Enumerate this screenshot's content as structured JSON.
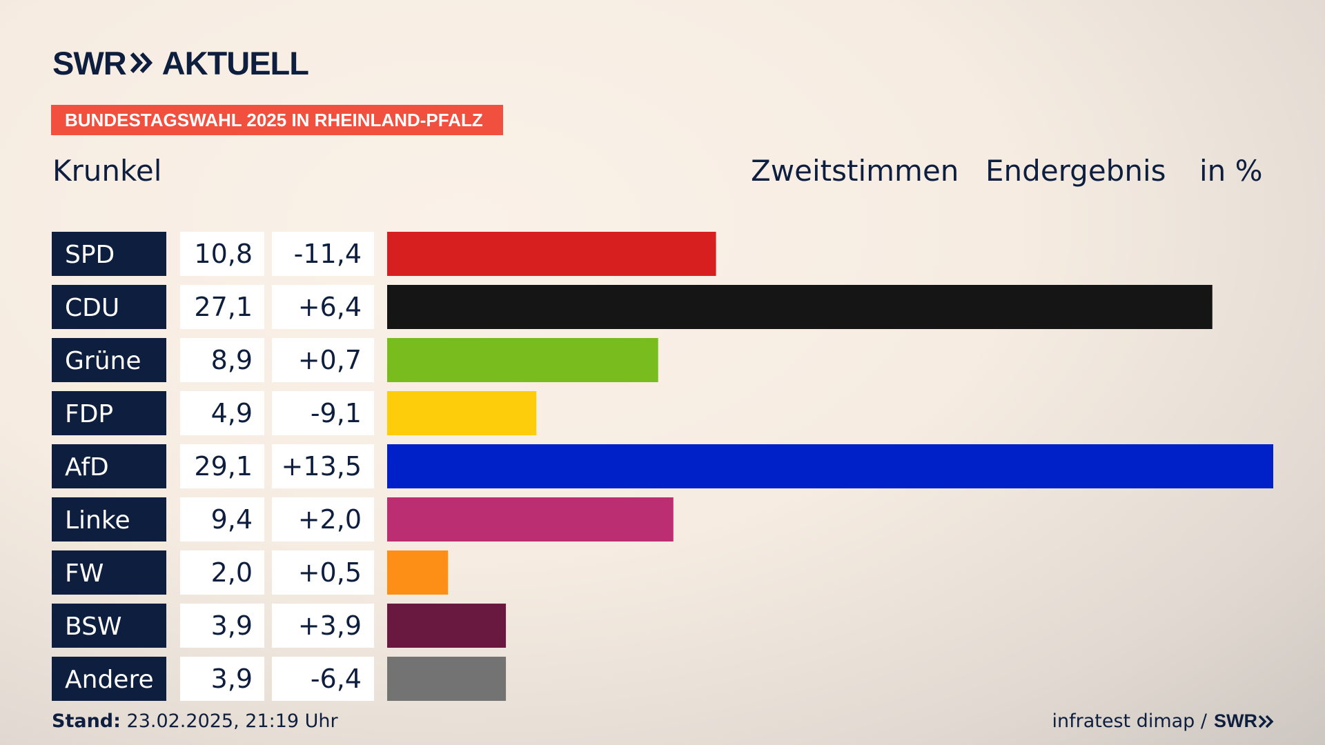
{
  "brand": {
    "swr": "SWR",
    "aktuell": "AKTUELL"
  },
  "banner": "BUNDESTAGSWAHL 2025 IN RHEINLAND-PFALZ",
  "place": "Krunkel",
  "header": {
    "vote_type": "Zweitstimmen",
    "result_type": "Endergebnis",
    "unit": "in %"
  },
  "colors": {
    "navy": "#0e1e3e",
    "banner_red": "#f2503f"
  },
  "chart_data": {
    "type": "bar",
    "orientation": "horizontal",
    "title": "Zweitstimmen Endergebnis",
    "unit": "in %",
    "categories": [
      "SPD",
      "CDU",
      "Grüne",
      "FDP",
      "AfD",
      "Linke",
      "FW",
      "BSW",
      "Andere"
    ],
    "values": [
      10.8,
      27.1,
      8.9,
      4.9,
      29.1,
      9.4,
      2.0,
      3.9,
      3.9
    ],
    "value_labels": [
      "10,8",
      "27,1",
      "8,9",
      "4,9",
      "29,1",
      "9,4",
      "2,0",
      "3,9",
      "3,9"
    ],
    "change_labels": [
      "-11,4",
      "+6,4",
      "+0,7",
      "-9,1",
      "+13,5",
      "+2,0",
      "+0,5",
      "+3,9",
      "-6,4"
    ],
    "changes": [
      -11.4,
      6.4,
      0.7,
      -9.1,
      13.5,
      2.0,
      0.5,
      3.9,
      -6.4
    ],
    "bar_colors": [
      "#d81f1f",
      "#151515",
      "#78bd1d",
      "#fdcd0c",
      "#0021c8",
      "#bb2f72",
      "#fd8e16",
      "#691940",
      "#737373"
    ],
    "xlim": [
      0,
      29.1
    ]
  },
  "footer": {
    "stand_label": "Stand:",
    "stand_value": "23.02.2025, 21:19 Uhr",
    "source": "infratest dimap /",
    "source_logo": "SWR"
  }
}
